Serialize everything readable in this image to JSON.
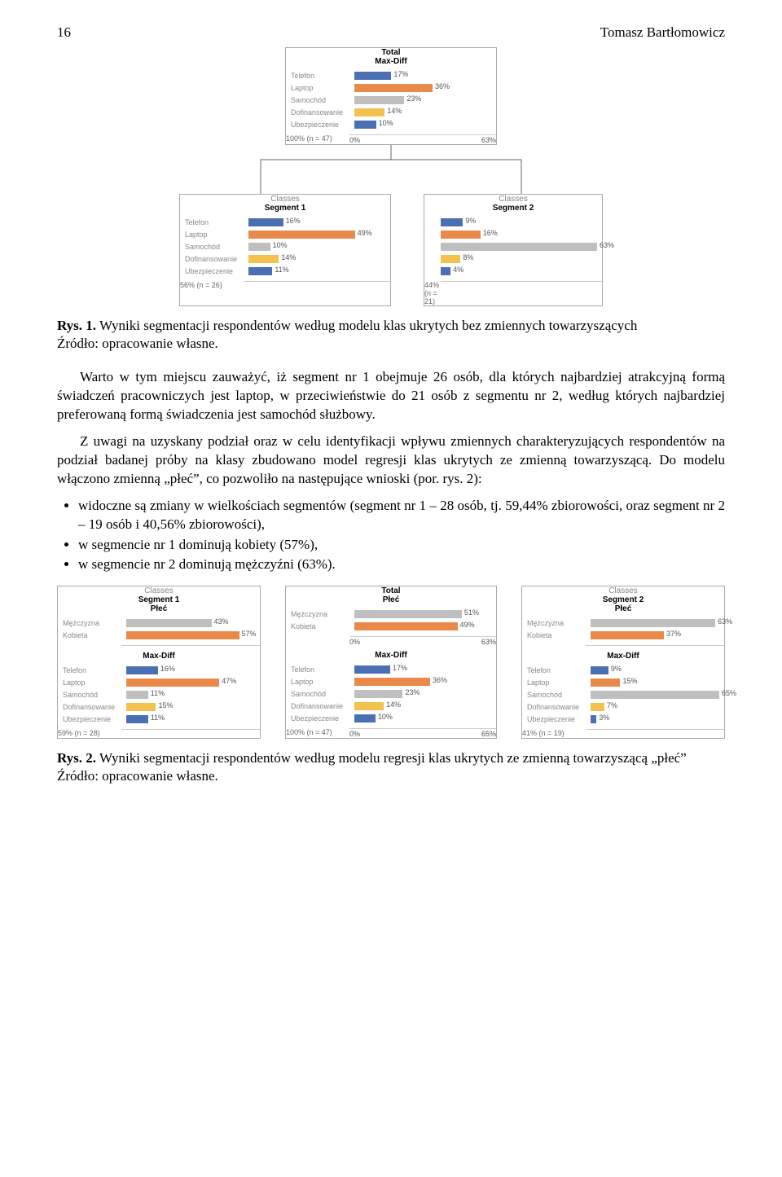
{
  "page_number": "16",
  "author": "Tomasz Bartłomowicz",
  "fig1": {
    "structure_type": "tree-of-barcharts",
    "colors": {
      "Telefon": "#4a6fb3",
      "Laptop": "#e98a4a",
      "Samochód": "#bfbfbf",
      "Dofinansowanie": "#f2c14e",
      "Ubezpieczenie": "#4a6fb3",
      "grid": "#cccccc",
      "panel_border": "#aaaaaa",
      "label_text": "#888888",
      "tree_line": "#666666"
    },
    "total": {
      "title1": "Total",
      "title2": "Max-Diff",
      "items": [
        {
          "label": "Telefon",
          "pct": 17,
          "color": "#4a6fb3"
        },
        {
          "label": "Laptop",
          "pct": 36,
          "color": "#e98a4a"
        },
        {
          "label": "Samochód",
          "pct": 23,
          "color": "#bfbfbf"
        },
        {
          "label": "Dofinansowanie",
          "pct": 14,
          "color": "#f2c14e"
        },
        {
          "label": "Ubezpieczenie",
          "pct": 10,
          "color": "#4a6fb3"
        }
      ],
      "axis_min": "0%",
      "axis_max": "63%",
      "xmax": 63,
      "footer": "100% (n = 47)"
    },
    "segment1": {
      "title0": "Classes",
      "title1": "Segment 1",
      "items": [
        {
          "label": "Telefon",
          "pct": 16,
          "color": "#4a6fb3"
        },
        {
          "label": "Laptop",
          "pct": 49,
          "color": "#e98a4a"
        },
        {
          "label": "Samochód",
          "pct": 10,
          "color": "#bfbfbf"
        },
        {
          "label": "Dofinansowanie",
          "pct": 14,
          "color": "#f2c14e"
        },
        {
          "label": "Ubezpieczenie",
          "pct": 11,
          "color": "#4a6fb3"
        }
      ],
      "axis_min": "",
      "axis_max": "",
      "xmax": 63,
      "footer": "56% (n = 26)"
    },
    "segment2": {
      "title0": "Classes",
      "title1": "Segment 2",
      "items": [
        {
          "label": "",
          "pct": 9,
          "color": "#4a6fb3"
        },
        {
          "label": "",
          "pct": 16,
          "color": "#e98a4a"
        },
        {
          "label": "",
          "pct": 63,
          "color": "#bfbfbf"
        },
        {
          "label": "",
          "pct": 8,
          "color": "#f2c14e"
        },
        {
          "label": "",
          "pct": 4,
          "color": "#4a6fb3"
        }
      ],
      "axis_min": "",
      "axis_max": "",
      "xmax": 63,
      "footer": "44% (n = 21)"
    },
    "caption_bold": "Rys. 1.",
    "caption_rest": " Wyniki segmentacji respondentów według modelu klas ukrytych bez zmiennych towarzyszących",
    "source": "Źródło: opracowanie własne."
  },
  "body": {
    "p1": "Warto w tym miejscu zauważyć, iż segment nr 1 obejmuje 26 osób, dla których najbardziej atrakcyjną formą świadczeń pracowniczych jest laptop, w przeciwieństwie do 21 osób z segmentu nr 2, według których najbardziej preferowaną formą świadczenia jest samochód służbowy.",
    "p2": "Z uwagi na uzyskany podział oraz w celu identyfikacji wpływu zmiennych charakteryzujących respondentów na podział badanej próby na klasy zbudowano model regresji klas ukrytych ze zmienną towarzyszącą. Do modelu włączono zmienną „płeć”, co pozwoliło na następujące wnioski (por. rys. 2):",
    "b1": "widoczne są zmiany w wielkościach segmentów (segment nr 1 – 28 osób, tj. 59,44% zbiorowości, oraz segment nr 2 – 19 osób i 40,56% zbiorowości),",
    "b2": "w segmencie nr 1 dominują kobiety (57%),",
    "b3": "w segmencie nr 2 dominują mężczyźni (63%)."
  },
  "fig2": {
    "structure_type": "three-panel-barcharts",
    "colors": {
      "Mężczyzna": "#bfbfbf",
      "Kobieta": "#e98a4a",
      "Telefon": "#4a6fb3",
      "Laptop": "#e98a4a",
      "Samochód": "#bfbfbf",
      "Dofinansowanie": "#f2c14e",
      "Ubezpieczenie": "#4a6fb3"
    },
    "seg1": {
      "title0": "Classes",
      "title1": "Segment 1",
      "title2": "Płeć",
      "plec": [
        {
          "label": "Mężczyzna",
          "pct": 43,
          "color": "#bfbfbf"
        },
        {
          "label": "Kobieta",
          "pct": 57,
          "color": "#e98a4a"
        }
      ],
      "title_md": "Max-Diff",
      "maxdiff": [
        {
          "label": "Telefon",
          "pct": 16,
          "color": "#4a6fb3"
        },
        {
          "label": "Laptop",
          "pct": 47,
          "color": "#e98a4a"
        },
        {
          "label": "Samochód",
          "pct": 11,
          "color": "#bfbfbf"
        },
        {
          "label": "Dofinansowanie",
          "pct": 15,
          "color": "#f2c14e"
        },
        {
          "label": "Ubezpieczenie",
          "pct": 11,
          "color": "#4a6fb3"
        }
      ],
      "xmax": 65,
      "footer": "59% (n = 28)"
    },
    "total": {
      "title1": "Total",
      "title2": "Płeć",
      "plec": [
        {
          "label": "Mężczyzna",
          "pct": 51,
          "color": "#bfbfbf"
        },
        {
          "label": "Kobieta",
          "pct": 49,
          "color": "#e98a4a"
        }
      ],
      "plec_axis_min": "0%",
      "plec_axis_max": "63%",
      "title_md": "Max-Diff",
      "maxdiff": [
        {
          "label": "Telefon",
          "pct": 17,
          "color": "#4a6fb3"
        },
        {
          "label": "Laptop",
          "pct": 36,
          "color": "#e98a4a"
        },
        {
          "label": "Samochód",
          "pct": 23,
          "color": "#bfbfbf"
        },
        {
          "label": "Dofinansowanie",
          "pct": 14,
          "color": "#f2c14e"
        },
        {
          "label": "Ubezpieczenie",
          "pct": 10,
          "color": "#4a6fb3"
        }
      ],
      "md_axis_min": "0%",
      "md_axis_max": "65%",
      "xmax": 65,
      "footer": "100% (n = 47)"
    },
    "seg2": {
      "title0": "Classes",
      "title1": "Segment 2",
      "title2": "Płeć",
      "plec": [
        {
          "label": "Mężczyzna",
          "pct": 63,
          "color": "#bfbfbf"
        },
        {
          "label": "Kobieta",
          "pct": 37,
          "color": "#e98a4a"
        }
      ],
      "title_md": "Max-Diff",
      "maxdiff": [
        {
          "label": "Telefon",
          "pct": 9,
          "color": "#4a6fb3"
        },
        {
          "label": "Laptop",
          "pct": 15,
          "color": "#e98a4a"
        },
        {
          "label": "Samochód",
          "pct": 65,
          "color": "#bfbfbf"
        },
        {
          "label": "Dofinansowanie",
          "pct": 7,
          "color": "#f2c14e"
        },
        {
          "label": "Ubezpieczenie",
          "pct": 3,
          "color": "#4a6fb3"
        }
      ],
      "xmax": 65,
      "footer": "41% (n = 19)"
    },
    "caption_bold": "Rys. 2.",
    "caption_rest": " Wyniki segmentacji respondentów według modelu regresji klas ukrytych ze zmienną towarzyszącą „płeć”",
    "source": "Źródło: opracowanie własne."
  }
}
